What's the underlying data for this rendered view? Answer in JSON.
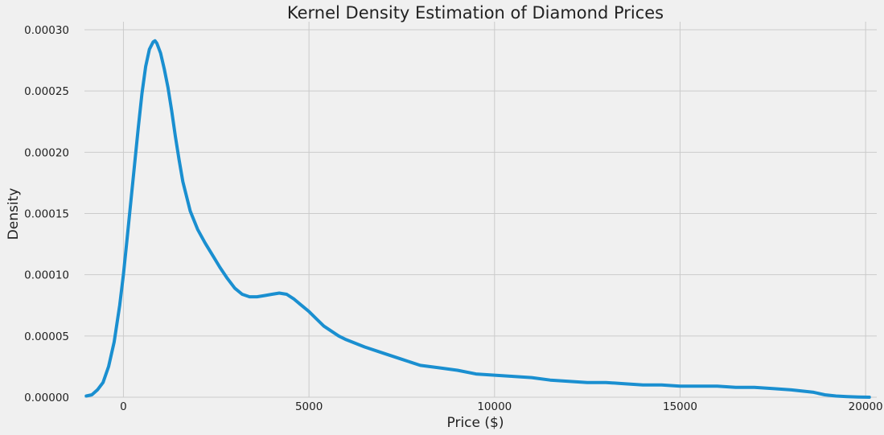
{
  "chart_data": {
    "type": "line",
    "title": "Kernel Density Estimation of Diamond Prices",
    "xlabel": "Price ($)",
    "ylabel": "Density",
    "xlim": [
      -1050,
      20300
    ],
    "ylim": [
      0,
      0.0003
    ],
    "x_ticks": [
      0,
      5000,
      10000,
      15000,
      20000
    ],
    "x_tick_labels": [
      "0",
      "5000",
      "10000",
      "15000",
      "20000"
    ],
    "y_ticks": [
      0,
      5e-05,
      0.0001,
      0.00015,
      0.0002,
      0.00025,
      0.0003
    ],
    "y_tick_labels": [
      "0.00000",
      "0.00005",
      "0.00010",
      "0.00015",
      "0.00020",
      "0.00025",
      "0.00030"
    ],
    "grid": true,
    "colors": {
      "background": "#f0f0f0",
      "grid": "#cbcbcb",
      "line": "#1a8fd0"
    },
    "series": [
      {
        "x": [
          -1000,
          -850,
          -700,
          -550,
          -400,
          -250,
          -100,
          0,
          100,
          200,
          300,
          400,
          500,
          600,
          700,
          800,
          850,
          900,
          1000,
          1100,
          1200,
          1300,
          1400,
          1500,
          1600,
          1800,
          2000,
          2200,
          2400,
          2600,
          2800,
          3000,
          3200,
          3400,
          3600,
          3800,
          4000,
          4200,
          4400,
          4600,
          4800,
          5000,
          5200,
          5400,
          5600,
          5800,
          6000,
          6500,
          7000,
          7500,
          8000,
          8500,
          9000,
          9500,
          10000,
          10500,
          11000,
          11500,
          12000,
          12500,
          13000,
          13500,
          14000,
          14500,
          15000,
          15500,
          16000,
          16500,
          17000,
          17500,
          18000,
          18300,
          18600,
          18900,
          19200,
          19500,
          19800,
          20100
        ],
        "y": [
          1e-06,
          2e-06,
          6e-06,
          1.2e-05,
          2.5e-05,
          4.5e-05,
          7.5e-05,
          0.0001,
          0.00013,
          0.00016,
          0.00019,
          0.00022,
          0.000248,
          0.00027,
          0.000284,
          0.00029,
          0.000291,
          0.000289,
          0.000281,
          0.000268,
          0.000253,
          0.000234,
          0.000213,
          0.000194,
          0.000176,
          0.000152,
          0.000137,
          0.000126,
          0.000116,
          0.000106,
          9.7e-05,
          8.9e-05,
          8.4e-05,
          8.2e-05,
          8.2e-05,
          8.3e-05,
          8.4e-05,
          8.5e-05,
          8.4e-05,
          8e-05,
          7.5e-05,
          7e-05,
          6.4e-05,
          5.8e-05,
          5.4e-05,
          5e-05,
          4.7e-05,
          4.1e-05,
          3.6e-05,
          3.1e-05,
          2.6e-05,
          2.4e-05,
          2.2e-05,
          1.9e-05,
          1.8e-05,
          1.7e-05,
          1.6e-05,
          1.4e-05,
          1.3e-05,
          1.2e-05,
          1.2e-05,
          1.1e-05,
          1e-05,
          1e-05,
          9e-06,
          9e-06,
          9e-06,
          8e-06,
          8e-06,
          7e-06,
          6e-06,
          5e-06,
          4e-06,
          2e-06,
          1e-06,
          5e-07,
          2e-07,
          0
        ]
      }
    ]
  }
}
